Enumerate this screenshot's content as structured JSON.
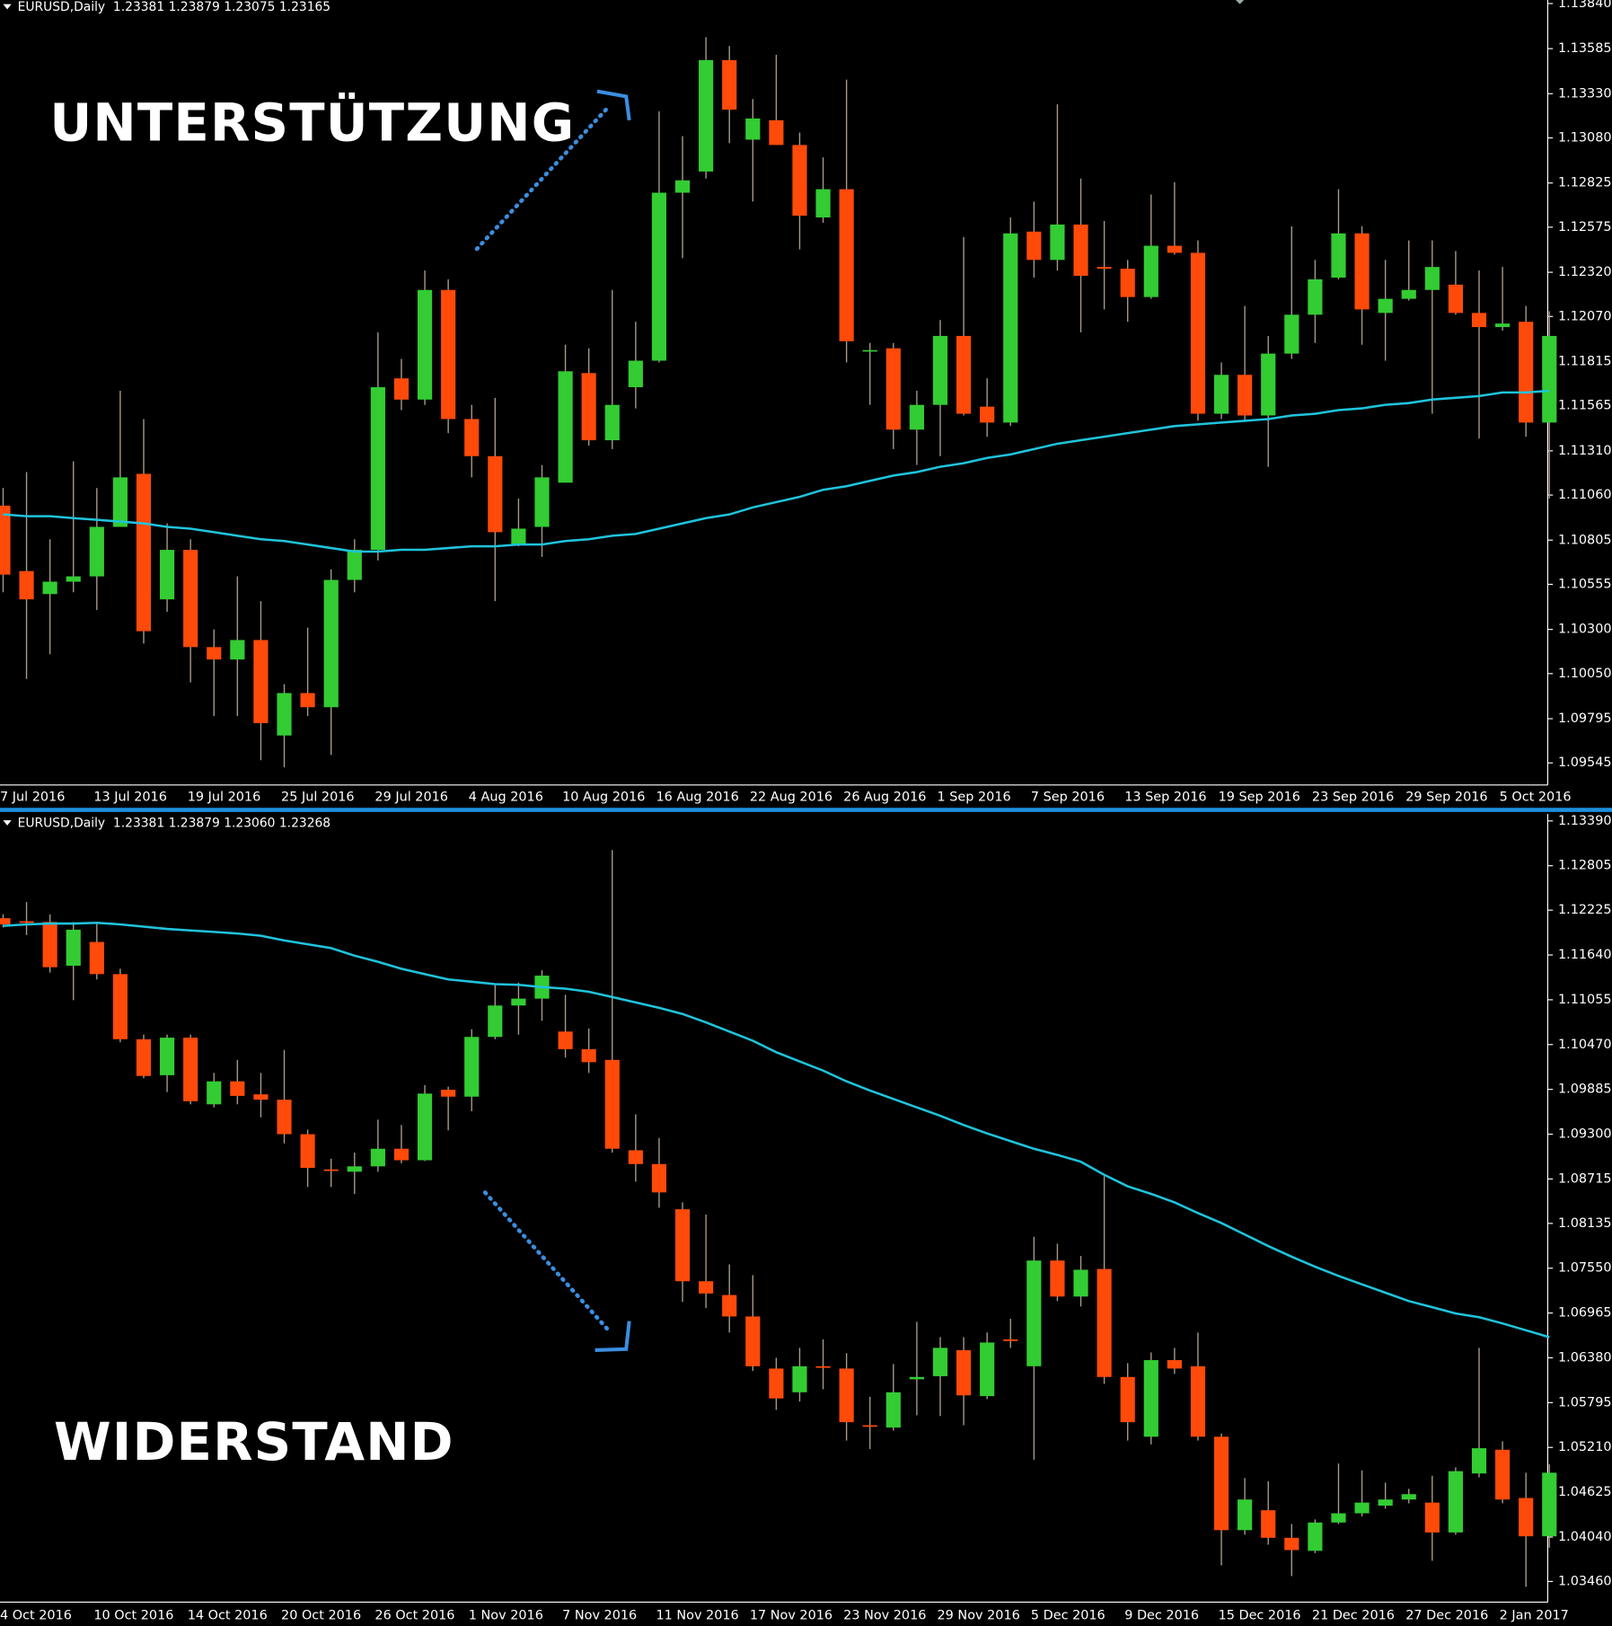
{
  "chart_data": [
    {
      "type": "candlestick",
      "header": "EURUSD,Daily  1.23381 1.23879 1.23075 1.23165",
      "annotation": "UNTERSTÜTZUNG",
      "categories": [
        "7 Jul 2016",
        null,
        null,
        null,
        "13 Jul 2016",
        null,
        null,
        null,
        "19 Jul 2016",
        null,
        null,
        null,
        "25 Jul 2016",
        null,
        null,
        null,
        "29 Jul 2016",
        null,
        null,
        null,
        "4 Aug 2016",
        null,
        null,
        null,
        "10 Aug 2016",
        null,
        null,
        null,
        "16 Aug 2016",
        null,
        null,
        null,
        "22 Aug 2016",
        null,
        null,
        null,
        "26 Aug 2016",
        null,
        null,
        null,
        "1 Sep 2016",
        null,
        null,
        null,
        "7 Sep 2016",
        null,
        null,
        null,
        "13 Sep 2016",
        null,
        null,
        null,
        "19 Sep 2016",
        null,
        null,
        null,
        "23 Sep 2016",
        null,
        null,
        null,
        "29 Sep 2016",
        null,
        null,
        null,
        "5 Oct 2016",
        null,
        null
      ],
      "open": [
        1.11,
        1.1063,
        1.105,
        1.1057,
        1.106,
        1.1088,
        1.1118,
        1.1047,
        1.1075,
        1.102,
        1.1013,
        1.1024,
        1.097,
        1.0994,
        1.0986,
        1.1058,
        1.1075,
        1.1172,
        1.116,
        1.1222,
        1.1149,
        1.1128,
        1.1078,
        1.1088,
        1.1113,
        1.1175,
        1.1137,
        1.1167,
        1.1182,
        1.1277,
        1.1289,
        1.1352,
        1.1307,
        1.1318,
        1.1304,
        1.1263,
        1.1279,
        1.1188,
        1.1189,
        1.1143,
        1.1157,
        1.1196,
        1.1156,
        1.1147,
        1.1255,
        1.1239,
        1.1259,
        1.1235,
        1.1234,
        1.1218,
        1.1247,
        1.1243,
        1.1152,
        1.1174,
        1.1151,
        1.1186,
        1.1208,
        1.1229,
        1.1254,
        1.1209,
        1.1217,
        1.1222,
        1.1225,
        1.1209,
        1.1201,
        1.1204,
        1.1147
      ],
      "high": [
        1.111,
        1.1119,
        1.1081,
        1.1125,
        1.111,
        1.1165,
        1.1149,
        1.109,
        1.1081,
        1.103,
        1.106,
        1.1046,
        1.0999,
        1.1031,
        1.1064,
        1.1081,
        1.1198,
        1.1183,
        1.1233,
        1.1228,
        1.1157,
        1.1161,
        1.1104,
        1.1123,
        1.1191,
        1.1189,
        1.1222,
        1.1204,
        1.1323,
        1.1309,
        1.1365,
        1.136,
        1.133,
        1.1355,
        1.1311,
        1.1297,
        1.1341,
        1.1192,
        1.1192,
        1.1165,
        1.1205,
        1.1252,
        1.1172,
        1.1263,
        1.1272,
        1.1327,
        1.1285,
        1.1261,
        1.1239,
        1.1276,
        1.1283,
        1.125,
        1.1181,
        1.1213,
        1.1196,
        1.1258,
        1.1239,
        1.1279,
        1.1258,
        1.1239,
        1.125,
        1.125,
        1.1244,
        1.1233,
        1.1235,
        1.1213,
        1.121
      ],
      "low": [
        1.1051,
        1.1002,
        1.1016,
        1.1051,
        1.1041,
        1.1088,
        1.1022,
        1.104,
        1.1,
        1.0981,
        1.0981,
        1.0956,
        1.0952,
        1.0981,
        1.0959,
        1.1051,
        1.1069,
        1.1154,
        1.1157,
        1.1141,
        1.1116,
        1.1046,
        1.1077,
        1.1071,
        1.1113,
        1.1134,
        1.1132,
        1.1155,
        1.1181,
        1.124,
        1.1285,
        1.1305,
        1.1272,
        1.1304,
        1.1245,
        1.126,
        1.1181,
        1.1157,
        1.1132,
        1.1123,
        1.1128,
        1.1151,
        1.1139,
        1.1145,
        1.1229,
        1.1233,
        1.1198,
        1.1211,
        1.1204,
        1.1217,
        1.1242,
        1.1148,
        1.1149,
        1.1148,
        1.1122,
        1.1183,
        1.1192,
        1.1228,
        1.1191,
        1.1182,
        1.1216,
        1.1152,
        1.1208,
        1.1138,
        1.1199,
        1.1139,
        1.1104
      ],
      "close": [
        1.1061,
        1.1047,
        1.1057,
        1.106,
        1.1088,
        1.1116,
        1.1029,
        1.1075,
        1.102,
        1.1013,
        1.1024,
        1.0977,
        1.0994,
        1.0986,
        1.1058,
        1.1075,
        1.1167,
        1.116,
        1.1222,
        1.1149,
        1.1128,
        1.1085,
        1.1087,
        1.1116,
        1.1176,
        1.1137,
        1.1157,
        1.1182,
        1.1277,
        1.1284,
        1.1352,
        1.1324,
        1.1319,
        1.1304,
        1.1264,
        1.1279,
        1.1193,
        1.1188,
        1.1143,
        1.1157,
        1.1196,
        1.1152,
        1.1147,
        1.1254,
        1.1239,
        1.1259,
        1.123,
        1.1234,
        1.1218,
        1.1247,
        1.1243,
        1.1152,
        1.1174,
        1.1151,
        1.1186,
        1.1208,
        1.1228,
        1.1254,
        1.1211,
        1.1217,
        1.1222,
        1.1235,
        1.1209,
        1.1201,
        1.1203,
        1.1147,
        1.1196
      ],
      "ma": {
        "color": "#1fc4dc",
        "values": [
          1.1095,
          1.1094,
          1.1094,
          1.1093,
          1.1092,
          1.1091,
          1.109,
          1.1088,
          1.1087,
          1.1085,
          1.1083,
          1.1081,
          1.108,
          1.1078,
          1.1076,
          1.1074,
          1.1074,
          1.1075,
          1.1075,
          1.1076,
          1.1077,
          1.1077,
          1.1078,
          1.1078,
          1.108,
          1.1081,
          1.1083,
          1.1084,
          1.1087,
          1.109,
          1.1093,
          1.1095,
          1.1099,
          1.1102,
          1.1105,
          1.1109,
          1.1111,
          1.1114,
          1.1117,
          1.1119,
          1.1122,
          1.1124,
          1.1127,
          1.1129,
          1.1132,
          1.1135,
          1.1137,
          1.1139,
          1.1141,
          1.1143,
          1.1145,
          1.1146,
          1.1147,
          1.1148,
          1.1149,
          1.1151,
          1.1152,
          1.1154,
          1.1155,
          1.1157,
          1.1158,
          1.116,
          1.1161,
          1.1162,
          1.1164,
          1.1164,
          1.1165
        ]
      },
      "up_color": "#33cc33",
      "down_color": "#ff4a0a",
      "wick_color": "#a89a86",
      "ylim": [
        1.0942,
        1.1386
      ],
      "yticks": [
        {
          "value": 1.1384,
          "label": "1.13840"
        },
        {
          "value": 1.13585,
          "label": "1.13585"
        },
        {
          "value": 1.1333,
          "label": "1.13330"
        },
        {
          "value": 1.1308,
          "label": "1.13080"
        },
        {
          "value": 1.12825,
          "label": "1.12825"
        },
        {
          "value": 1.12575,
          "label": "1.12575"
        },
        {
          "value": 1.1232,
          "label": "1.12320"
        },
        {
          "value": 1.1207,
          "label": "1.12070"
        },
        {
          "value": 1.11815,
          "label": "1.11815"
        },
        {
          "value": 1.11565,
          "label": "1.11565"
        },
        {
          "value": 1.1131,
          "label": "1.11310"
        },
        {
          "value": 1.1106,
          "label": "1.11060"
        },
        {
          "value": 1.10805,
          "label": "1.10805"
        },
        {
          "value": 1.10555,
          "label": "1.10555"
        },
        {
          "value": 1.103,
          "label": "1.10300"
        },
        {
          "value": 1.1005,
          "label": "1.10050"
        },
        {
          "value": 1.09795,
          "label": "1.09795"
        },
        {
          "value": 1.09545,
          "label": "1.09545"
        }
      ]
    },
    {
      "type": "candlestick",
      "header": "EURUSD,Daily  1.23381 1.23879 1.23060 1.23268",
      "annotation": "WIDERSTAND",
      "categories": [
        "4 Oct 2016",
        null,
        null,
        null,
        "10 Oct 2016",
        null,
        null,
        null,
        "14 Oct 2016",
        null,
        null,
        null,
        "20 Oct 2016",
        null,
        null,
        null,
        "26 Oct 2016",
        null,
        null,
        null,
        "1 Nov 2016",
        null,
        null,
        null,
        "7 Nov 2016",
        null,
        null,
        null,
        "11 Nov 2016",
        null,
        null,
        null,
        "17 Nov 2016",
        null,
        null,
        null,
        "23 Nov 2016",
        null,
        null,
        null,
        "29 Nov 2016",
        null,
        null,
        null,
        "5 Dec 2016",
        null,
        null,
        null,
        "9 Dec 2016",
        null,
        null,
        null,
        "15 Dec 2016",
        null,
        null,
        null,
        "21 Dec 2016",
        null,
        null,
        null,
        "27 Dec 2016",
        null,
        null,
        null,
        "2 Jan 2017",
        null,
        null
      ],
      "open": [
        1.1212,
        1.1208,
        1.1207,
        1.115,
        1.1181,
        1.1139,
        1.1054,
        1.1007,
        1.1056,
        1.0969,
        1.0999,
        1.0982,
        1.0975,
        1.093,
        1.0884,
        1.0881,
        1.0888,
        1.0911,
        1.0896,
        1.0988,
        1.0979,
        1.1057,
        1.1098,
        1.1107,
        1.1064,
        1.1041,
        1.1027,
        1.0909,
        1.0891,
        1.0832,
        1.0738,
        1.072,
        1.0692,
        1.0624,
        1.0593,
        1.0627,
        1.0624,
        1.055,
        1.0547,
        1.061,
        1.0614,
        1.0648,
        1.0588,
        1.0662,
        1.0627,
        1.0765,
        1.0718,
        1.0754,
        1.0613,
        1.0535,
        1.0635,
        1.0627,
        1.0535,
        1.0413,
        1.0439,
        1.0403,
        1.0386,
        1.0423,
        1.0435,
        1.0445,
        1.0453,
        1.0449,
        1.041,
        1.0487,
        1.0518,
        1.0455,
        1.0405
      ],
      "high": [
        1.1217,
        1.1233,
        1.1217,
        1.1207,
        1.1207,
        1.1146,
        1.106,
        1.106,
        1.106,
        1.101,
        1.1027,
        1.101,
        1.104,
        1.0936,
        1.0898,
        1.0906,
        1.0949,
        1.0942,
        1.0994,
        1.0992,
        1.1067,
        1.1125,
        1.1128,
        1.1144,
        1.1112,
        1.1068,
        1.1301,
        1.0956,
        1.0925,
        1.0841,
        1.0825,
        1.076,
        1.0746,
        1.0638,
        1.0651,
        1.0662,
        1.0644,
        1.0587,
        1.063,
        1.0685,
        1.0665,
        1.0665,
        1.0671,
        1.0689,
        1.0796,
        1.0787,
        1.0771,
        1.0875,
        1.0631,
        1.0645,
        1.0651,
        1.0671,
        1.0539,
        1.0481,
        1.0477,
        1.0421,
        1.0427,
        1.05,
        1.0491,
        1.0475,
        1.0467,
        1.0484,
        1.0495,
        1.0651,
        1.0529,
        1.0488,
        1.0499
      ],
      "low": [
        1.12,
        1.119,
        1.1141,
        1.1105,
        1.1132,
        1.105,
        1.1003,
        1.0985,
        1.0969,
        1.0965,
        1.0969,
        1.0952,
        1.0918,
        1.0861,
        1.0861,
        1.0852,
        1.0881,
        1.0892,
        1.0895,
        1.0935,
        1.096,
        1.1054,
        1.106,
        1.1078,
        1.103,
        1.101,
        1.0906,
        1.0868,
        1.0834,
        1.0711,
        1.0703,
        1.0671,
        1.0621,
        1.057,
        1.0581,
        1.0597,
        1.053,
        1.0519,
        1.0543,
        1.0563,
        1.0562,
        1.055,
        1.0584,
        1.0651,
        1.0505,
        1.0712,
        1.0705,
        1.0604,
        1.053,
        1.0525,
        1.0617,
        1.053,
        1.0367,
        1.0407,
        1.0394,
        1.0353,
        1.0383,
        1.0421,
        1.0431,
        1.0441,
        1.0448,
        1.0373,
        1.0407,
        1.0482,
        1.0448,
        1.0339,
        1.039
      ],
      "close": [
        1.1204,
        1.1207,
        1.1148,
        1.1197,
        1.1139,
        1.1054,
        1.1006,
        1.1056,
        1.0973,
        1.0999,
        1.098,
        1.0975,
        1.093,
        1.0886,
        1.0883,
        1.0888,
        1.0911,
        1.0896,
        1.0983,
        1.0979,
        1.1057,
        1.1098,
        1.1107,
        1.1137,
        1.1041,
        1.1024,
        1.0911,
        1.0891,
        1.0854,
        1.0738,
        1.0722,
        1.0692,
        1.0627,
        1.0585,
        1.0627,
        1.0626,
        1.0554,
        1.0549,
        1.0593,
        1.0613,
        1.0651,
        1.0589,
        1.0658,
        1.0661,
        1.0765,
        1.0718,
        1.0753,
        1.0613,
        1.0554,
        1.0635,
        1.0624,
        1.0535,
        1.0413,
        1.0453,
        1.0403,
        1.0387,
        1.0423,
        1.0435,
        1.0449,
        1.0453,
        1.046,
        1.041,
        1.049,
        1.052,
        1.0453,
        1.0405,
        1.0488
      ],
      "ma": {
        "color": "#1fc4dc",
        "values": [
          1.1202,
          1.1204,
          1.1205,
          1.1205,
          1.1206,
          1.1204,
          1.1201,
          1.1198,
          1.1196,
          1.1194,
          1.1192,
          1.1189,
          1.1183,
          1.1178,
          1.1173,
          1.1163,
          1.1155,
          1.1146,
          1.1139,
          1.1132,
          1.1129,
          1.1126,
          1.1125,
          1.1122,
          1.112,
          1.1116,
          1.1109,
          1.1102,
          1.1095,
          1.1087,
          1.1076,
          1.1064,
          1.1052,
          1.1037,
          1.1025,
          1.1013,
          1.0999,
          1.0987,
          1.0976,
          1.0965,
          1.0954,
          1.0942,
          1.0931,
          1.0921,
          1.0911,
          1.0903,
          1.0894,
          1.0877,
          1.0862,
          1.0852,
          1.0841,
          1.0827,
          1.0814,
          1.0799,
          1.0784,
          1.077,
          1.0757,
          1.0745,
          1.0734,
          1.0723,
          1.0712,
          1.0704,
          1.0696,
          1.0691,
          1.0683,
          1.0674,
          1.0665
        ]
      },
      "up_color": "#33cc33",
      "down_color": "#ff4a0a",
      "wick_color": "#a89a86",
      "ylim": [
        1.0319,
        1.1348
      ],
      "yticks": [
        {
          "value": 1.1339,
          "label": "1.13390"
        },
        {
          "value": 1.12805,
          "label": "1.12805"
        },
        {
          "value": 1.12225,
          "label": "1.12225"
        },
        {
          "value": 1.1164,
          "label": "1.11640"
        },
        {
          "value": 1.11055,
          "label": "1.11055"
        },
        {
          "value": 1.1047,
          "label": "1.10470"
        },
        {
          "value": 1.09885,
          "label": "1.09885"
        },
        {
          "value": 1.093,
          "label": "1.09300"
        },
        {
          "value": 1.08715,
          "label": "1.08715"
        },
        {
          "value": 1.08135,
          "label": "1.08135"
        },
        {
          "value": 1.0755,
          "label": "1.07550"
        },
        {
          "value": 1.06965,
          "label": "1.06965"
        },
        {
          "value": 1.0638,
          "label": "1.06380"
        },
        {
          "value": 1.05795,
          "label": "1.05795"
        },
        {
          "value": 1.0521,
          "label": "1.05210"
        },
        {
          "value": 1.04625,
          "label": "1.04625"
        },
        {
          "value": 1.0404,
          "label": "1.04040"
        },
        {
          "value": 1.0346,
          "label": "1.03460"
        }
      ]
    }
  ]
}
